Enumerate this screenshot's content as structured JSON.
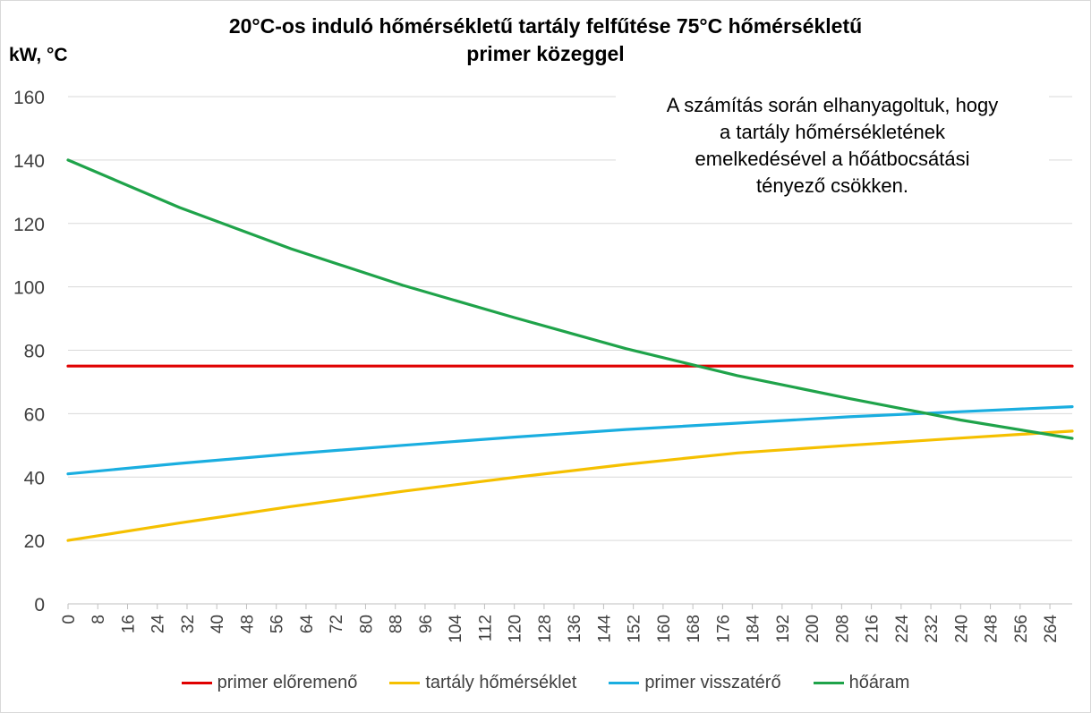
{
  "chart_data": {
    "type": "line",
    "title_lines": [
      "20°C-os induló  hőmérsékletű tartály felfűtése 75°C  hőmérsékletű",
      "primer közeggel"
    ],
    "ylabel": "kW, °C",
    "xlabel": "",
    "ylim": [
      0,
      160
    ],
    "y_ticks": [
      0,
      20,
      40,
      60,
      80,
      100,
      120,
      140,
      160
    ],
    "xlim": [
      0,
      270
    ],
    "x_ticks": [
      0,
      8,
      16,
      24,
      32,
      40,
      48,
      56,
      64,
      72,
      80,
      88,
      96,
      104,
      112,
      120,
      128,
      136,
      144,
      152,
      160,
      168,
      176,
      184,
      192,
      200,
      208,
      216,
      224,
      232,
      240,
      248,
      256,
      264
    ],
    "grid": "horizontal",
    "legend_position": "bottom",
    "annotation_lines": [
      "A számítás során elhanyagoltuk, hogy",
      "a tartály hőmérsékletének",
      "emelkedésével a hőátbocsátási",
      "tényező csökken."
    ],
    "series": [
      {
        "name": "primer előremenő",
        "color": "#e00000",
        "x": [
          0,
          270
        ],
        "values": [
          75,
          75
        ]
      },
      {
        "name": "tartály hőmérséklet",
        "color": "#f5c000",
        "x": [
          0,
          30,
          60,
          90,
          120,
          150,
          180,
          210,
          240,
          270
        ],
        "values": [
          20,
          25.5,
          30.7,
          35.5,
          39.9,
          44.0,
          47.6,
          50.0,
          52.3,
          54.5
        ]
      },
      {
        "name": "primer visszatérő",
        "color": "#1aaee0",
        "x": [
          0,
          30,
          60,
          90,
          120,
          150,
          180,
          210,
          240,
          270
        ],
        "values": [
          41,
          44.3,
          47.3,
          50.0,
          52.6,
          55.0,
          57.0,
          59.0,
          60.6,
          62.2
        ]
      },
      {
        "name": "hőáram",
        "color": "#1fa34a",
        "x": [
          0,
          2,
          30,
          60,
          90,
          120,
          150,
          180,
          210,
          240,
          270
        ],
        "values": [
          140,
          139,
          125,
          112,
          100.5,
          90.3,
          80.5,
          72.0,
          64.8,
          58.0,
          52.2
        ]
      }
    ]
  }
}
